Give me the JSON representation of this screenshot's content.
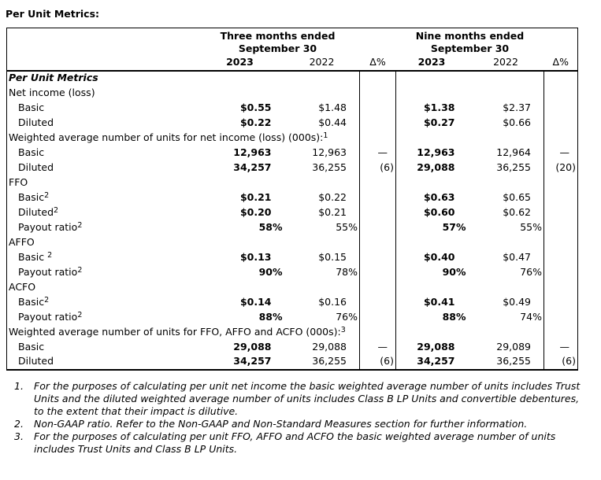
{
  "title": "Per Unit Metrics:",
  "colors": {
    "text_color": "#000000",
    "border_color": "#000000",
    "background_color": "#ffffff"
  },
  "table": {
    "groups": [
      {
        "line1": "Three months ended",
        "line2": "September 30"
      },
      {
        "line1": "Nine months ended",
        "line2": "September 30"
      }
    ],
    "years": [
      "2023",
      "2022",
      "Δ%",
      "2023",
      "2022",
      "Δ%"
    ],
    "rows": [
      {
        "label": "Per Unit Metrics",
        "sup": "",
        "c": [
          "",
          "",
          "",
          "",
          "",
          ""
        ]
      },
      {
        "label": "Net income (loss)",
        "sup": "",
        "c": [
          "",
          "",
          "",
          "",
          "",
          ""
        ]
      },
      {
        "label": "Basic",
        "sup": "",
        "c": [
          "$0.55",
          "$1.48",
          "",
          "$1.38",
          "$2.37",
          ""
        ]
      },
      {
        "label": "Diluted",
        "sup": "",
        "c": [
          "$0.22",
          "$0.44",
          "",
          "$0.27",
          "$0.66",
          ""
        ]
      },
      {
        "label": "Weighted average number of units for net income (loss) (000s):",
        "sup": "1",
        "c": [
          "",
          "",
          "",
          "",
          "",
          ""
        ]
      },
      {
        "label": "Basic",
        "sup": "",
        "c": [
          "12,963",
          "12,963",
          "—",
          "12,963",
          "12,964",
          "—"
        ]
      },
      {
        "label": "Diluted",
        "sup": "",
        "c": [
          "34,257",
          "36,255",
          "(6)",
          "29,088",
          "36,255",
          "(20)"
        ]
      },
      {
        "label": "FFO",
        "sup": "",
        "c": [
          "",
          "",
          "",
          "",
          "",
          ""
        ]
      },
      {
        "label": "Basic",
        "sup": "2",
        "c": [
          "$0.21",
          "$0.22",
          "",
          "$0.63",
          "$0.65",
          ""
        ]
      },
      {
        "label": "Diluted",
        "sup": "2",
        "c": [
          "$0.20",
          "$0.21",
          "",
          "$0.60",
          "$0.62",
          ""
        ]
      },
      {
        "label": "Payout ratio",
        "sup": "2",
        "c": [
          "58%",
          "55%",
          "",
          "57%",
          "55%",
          ""
        ]
      },
      {
        "label": "AFFO",
        "sup": "",
        "c": [
          "",
          "",
          "",
          "",
          "",
          ""
        ]
      },
      {
        "label": "Basic ",
        "sup": "2",
        "c": [
          "$0.13",
          "$0.15",
          "",
          "$0.40",
          "$0.47",
          ""
        ]
      },
      {
        "label": "Payout ratio",
        "sup": "2",
        "c": [
          "90%",
          "78%",
          "",
          "90%",
          "76%",
          ""
        ]
      },
      {
        "label": "ACFO",
        "sup": "",
        "c": [
          "",
          "",
          "",
          "",
          "",
          ""
        ]
      },
      {
        "label": "Basic",
        "sup": "2",
        "c": [
          "$0.14",
          "$0.16",
          "",
          "$0.41",
          "$0.49",
          ""
        ]
      },
      {
        "label": "Payout ratio",
        "sup": "2",
        "c": [
          "88%",
          "76%",
          "",
          "88%",
          "74%",
          ""
        ]
      },
      {
        "label": "Weighted average number of units for FFO, AFFO and ACFO (000s):",
        "sup": "3",
        "c": [
          "",
          "",
          "",
          "",
          "",
          ""
        ]
      },
      {
        "label": "Basic",
        "sup": "",
        "c": [
          "29,088",
          "29,088",
          "—",
          "29,088",
          "29,089",
          "—"
        ]
      },
      {
        "label": "Diluted",
        "sup": "",
        "c": [
          "34,257",
          "36,255",
          "(6)",
          "34,257",
          "36,255",
          "(6)"
        ]
      }
    ]
  },
  "footnotes": [
    {
      "num": "1.",
      "text": "For the purposes of calculating per unit net income the basic weighted average number of units includes Trust Units and the diluted weighted average number of units includes Class B LP Units and convertible debentures, to the extent that their impact is dilutive."
    },
    {
      "num": "2.",
      "text": "Non-GAAP ratio. Refer to the Non-GAAP and Non-Standard Measures section for further information."
    },
    {
      "num": "3.",
      "text": "For the purposes of calculating per unit FFO, AFFO and ACFO the basic weighted average number of units includes Trust Units and Class B LP Units."
    }
  ]
}
